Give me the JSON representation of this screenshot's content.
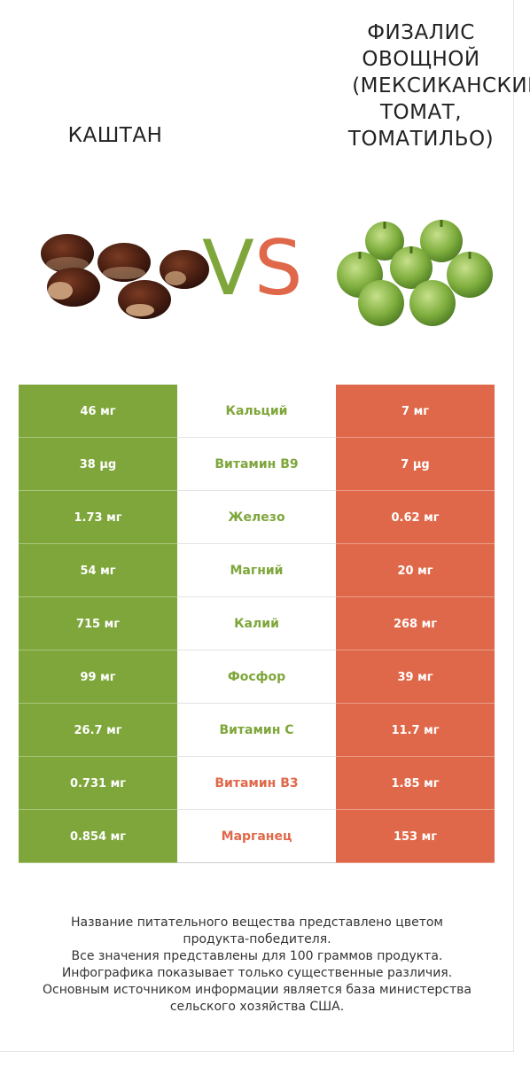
{
  "products": {
    "left": {
      "name": "КАШТАН",
      "color": "#7ea63a",
      "image": "chestnuts-image"
    },
    "right": {
      "name_lines": [
        "ФИЗАЛИС",
        "ОВОЩНОЙ",
        "(МЕКСИКАНСКИЙ",
        "ТОМАТ,",
        "ТОМАТИЛЬО)"
      ],
      "color": "#e0684a",
      "image": "tomatillos-image"
    }
  },
  "vs": {
    "v": "V",
    "s": "S"
  },
  "rows": [
    {
      "left": "46 мг",
      "nutrient": "Кальций",
      "right": "7 мг",
      "winner": "left"
    },
    {
      "left": "38 µg",
      "nutrient": "Витамин B9",
      "right": "7 µg",
      "winner": "left"
    },
    {
      "left": "1.73 мг",
      "nutrient": "Железо",
      "right": "0.62 мг",
      "winner": "left"
    },
    {
      "left": "54 мг",
      "nutrient": "Магний",
      "right": "20 мг",
      "winner": "left"
    },
    {
      "left": "715 мг",
      "nutrient": "Калий",
      "right": "268 мг",
      "winner": "left"
    },
    {
      "left": "99 мг",
      "nutrient": "Фосфор",
      "right": "39 мг",
      "winner": "left"
    },
    {
      "left": "26.7 мг",
      "nutrient": "Витамин C",
      "right": "11.7 мг",
      "winner": "left"
    },
    {
      "left": "0.731 мг",
      "nutrient": "Витамин B3",
      "right": "1.85 мг",
      "winner": "right"
    },
    {
      "left": "0.854 мг",
      "nutrient": "Марганец",
      "right": "153 мг",
      "winner": "right"
    }
  ],
  "footer": [
    "Название питательного вещества представлено цветом",
    "продукта-победителя.",
    "Все значения представлены для 100 граммов продукта.",
    "Инфографика показывает только существенные различия.",
    "Основным источником информации является база министерства",
    "сельского хозяйства США."
  ]
}
